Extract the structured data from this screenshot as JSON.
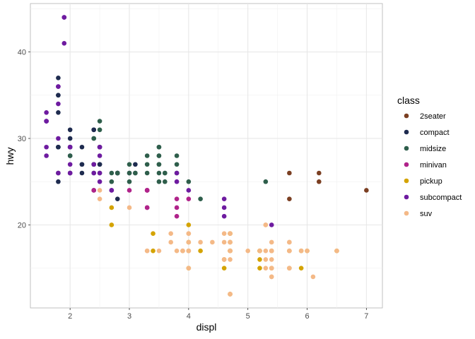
{
  "chart_data": {
    "type": "scatter",
    "title": "",
    "xlabel": "displ",
    "ylabel": "hwy",
    "xlim": [
      1.33,
      7.27
    ],
    "ylim": [
      10.4,
      45.6
    ],
    "x_ticks": [
      2,
      3,
      4,
      5,
      6,
      7
    ],
    "y_ticks": [
      20,
      30,
      40
    ],
    "grid": true,
    "legend": {
      "title": "class",
      "position": "right"
    },
    "series": [
      {
        "name": "2seater",
        "color": "#7b3f22",
        "points": [
          [
            5.7,
            26
          ],
          [
            5.7,
            23
          ],
          [
            6.2,
            26
          ],
          [
            6.2,
            25
          ],
          [
            7.0,
            24
          ]
        ]
      },
      {
        "name": "compact",
        "color": "#1e2b4f",
        "points": [
          [
            1.8,
            29
          ],
          [
            1.8,
            29
          ],
          [
            2.0,
            31
          ],
          [
            2.0,
            30
          ],
          [
            2.8,
            26
          ],
          [
            2.8,
            26
          ],
          [
            3.1,
            27
          ],
          [
            1.8,
            26
          ],
          [
            1.8,
            25
          ],
          [
            2.0,
            28
          ],
          [
            2.0,
            29
          ],
          [
            2.8,
            26
          ],
          [
            3.1,
            26
          ],
          [
            2.2,
            27
          ],
          [
            2.2,
            29
          ],
          [
            2.4,
            31
          ],
          [
            2.4,
            31
          ],
          [
            3.0,
            26
          ],
          [
            1.8,
            33
          ],
          [
            1.8,
            35
          ],
          [
            1.8,
            37
          ],
          [
            1.8,
            35
          ],
          [
            1.8,
            29
          ],
          [
            2.0,
            29
          ],
          [
            2.0,
            29
          ],
          [
            2.5,
            27
          ],
          [
            2.5,
            27
          ],
          [
            2.2,
            26
          ],
          [
            2.2,
            27
          ],
          [
            2.4,
            24
          ],
          [
            2.8,
            23
          ]
        ]
      },
      {
        "name": "midsize",
        "color": "#2e5e4b",
        "points": [
          [
            2.4,
            27
          ],
          [
            2.4,
            30
          ],
          [
            3.1,
            26
          ],
          [
            3.5,
            29
          ],
          [
            3.6,
            26
          ],
          [
            2.4,
            27
          ],
          [
            3.0,
            26
          ],
          [
            3.3,
            26
          ],
          [
            3.3,
            28
          ],
          [
            3.3,
            27
          ],
          [
            3.8,
            27
          ],
          [
            3.8,
            26
          ],
          [
            4.0,
            25
          ],
          [
            2.4,
            30
          ],
          [
            2.5,
            32
          ],
          [
            2.5,
            31
          ],
          [
            3.5,
            27
          ],
          [
            3.5,
            25
          ],
          [
            3.0,
            27
          ],
          [
            3.5,
            26
          ],
          [
            2.5,
            29
          ],
          [
            2.5,
            26
          ],
          [
            2.7,
            26
          ],
          [
            2.7,
            25
          ],
          [
            3.0,
            25
          ],
          [
            3.5,
            28
          ],
          [
            3.5,
            27
          ],
          [
            3.8,
            28
          ],
          [
            4.2,
            23
          ],
          [
            5.3,
            25
          ],
          [
            2.0,
            28
          ],
          [
            2.0,
            26
          ],
          [
            2.8,
            26
          ],
          [
            3.6,
            26
          ],
          [
            3.6,
            25
          ],
          [
            2.4,
            26
          ],
          [
            2.4,
            27
          ],
          [
            3.5,
            29
          ],
          [
            3.5,
            28
          ],
          [
            2.5,
            29
          ]
        ]
      },
      {
        "name": "minivan",
        "color": "#b0238a",
        "points": [
          [
            2.4,
            24
          ],
          [
            3.0,
            24
          ],
          [
            3.3,
            22
          ],
          [
            3.3,
            22
          ],
          [
            3.3,
            24
          ],
          [
            3.3,
            24
          ],
          [
            3.3,
            24
          ],
          [
            3.8,
            22
          ],
          [
            3.8,
            21
          ],
          [
            3.8,
            23
          ],
          [
            4.0,
            23
          ],
          [
            3.3,
            24
          ]
        ]
      },
      {
        "name": "pickup",
        "color": "#d4a300",
        "points": [
          [
            2.7,
            20
          ],
          [
            2.7,
            22
          ],
          [
            3.4,
            19
          ],
          [
            3.4,
            17
          ],
          [
            4.0,
            20
          ],
          [
            4.0,
            17
          ],
          [
            4.7,
            17
          ],
          [
            4.7,
            17
          ],
          [
            4.7,
            12
          ],
          [
            5.2,
            17
          ],
          [
            5.2,
            15
          ],
          [
            5.7,
            17
          ],
          [
            5.9,
            17
          ],
          [
            4.7,
            19
          ],
          [
            4.7,
            18
          ],
          [
            4.7,
            17
          ],
          [
            4.7,
            19
          ],
          [
            5.2,
            16
          ],
          [
            5.2,
            17
          ],
          [
            4.7,
            12
          ],
          [
            4.7,
            19
          ],
          [
            5.7,
            15
          ],
          [
            5.9,
            15
          ],
          [
            6.0,
            17
          ],
          [
            6.5,
            17
          ],
          [
            4.2,
            17
          ],
          [
            4.6,
            15
          ],
          [
            4.6,
            16
          ],
          [
            5.4,
            15
          ],
          [
            5.4,
            17
          ],
          [
            4.0,
            15
          ],
          [
            4.0,
            18
          ],
          [
            4.7,
            17
          ]
        ]
      },
      {
        "name": "subcompact",
        "color": "#6e1ba0",
        "points": [
          [
            1.6,
            33
          ],
          [
            1.6,
            32
          ],
          [
            1.6,
            32
          ],
          [
            1.6,
            29
          ],
          [
            1.6,
            32
          ],
          [
            1.8,
            34
          ],
          [
            1.8,
            36
          ],
          [
            1.8,
            36
          ],
          [
            2.0,
            29
          ],
          [
            2.4,
            26
          ],
          [
            2.4,
            27
          ],
          [
            2.5,
            26
          ],
          [
            2.5,
            25
          ],
          [
            3.8,
            26
          ],
          [
            3.8,
            25
          ],
          [
            4.0,
            24
          ],
          [
            4.6,
            23
          ],
          [
            4.6,
            22
          ],
          [
            5.4,
            20
          ],
          [
            1.9,
            44
          ],
          [
            1.9,
            44
          ],
          [
            1.9,
            41
          ],
          [
            2.0,
            29
          ],
          [
            2.0,
            26
          ],
          [
            2.5,
            29
          ],
          [
            2.5,
            29
          ],
          [
            2.5,
            28
          ],
          [
            2.7,
            24
          ],
          [
            2.7,
            24
          ],
          [
            1.8,
            30
          ],
          [
            2.0,
            27
          ],
          [
            2.0,
            26
          ],
          [
            1.8,
            26
          ],
          [
            4.6,
            21
          ],
          [
            1.6,
            28
          ]
        ]
      },
      {
        "name": "suv",
        "color": "#f4b987",
        "points": [
          [
            5.3,
            20
          ],
          [
            5.3,
            15
          ],
          [
            5.3,
            20
          ],
          [
            5.7,
            17
          ],
          [
            6.0,
            17
          ],
          [
            5.7,
            18
          ],
          [
            6.5,
            17
          ],
          [
            3.7,
            19
          ],
          [
            3.7,
            18
          ],
          [
            3.9,
            17
          ],
          [
            3.9,
            17
          ],
          [
            4.7,
            19
          ],
          [
            4.7,
            19
          ],
          [
            4.7,
            12
          ],
          [
            5.2,
            17
          ],
          [
            5.7,
            17
          ],
          [
            5.9,
            17
          ],
          [
            4.7,
            12
          ],
          [
            4.7,
            12
          ],
          [
            4.7,
            16
          ],
          [
            4.7,
            17
          ],
          [
            5.7,
            17
          ],
          [
            6.1,
            14
          ],
          [
            5.4,
            17
          ],
          [
            4.0,
            18
          ],
          [
            4.0,
            17
          ],
          [
            4.0,
            15
          ],
          [
            4.0,
            19
          ],
          [
            4.6,
            19
          ],
          [
            5.0,
            17
          ],
          [
            4.2,
            18
          ],
          [
            4.4,
            18
          ],
          [
            4.6,
            16
          ],
          [
            5.4,
            17
          ],
          [
            5.4,
            17
          ],
          [
            4.6,
            16
          ],
          [
            5.4,
            18
          ],
          [
            5.7,
            18
          ],
          [
            5.4,
            15
          ],
          [
            3.3,
            17
          ],
          [
            3.3,
            17
          ],
          [
            3.0,
            22
          ],
          [
            2.5,
            23
          ],
          [
            2.5,
            24
          ],
          [
            4.0,
            17
          ],
          [
            3.8,
            17
          ],
          [
            4.7,
            18
          ],
          [
            5.4,
            14
          ],
          [
            5.4,
            14
          ],
          [
            5.7,
            15
          ],
          [
            4.6,
            18
          ],
          [
            5.4,
            16
          ],
          [
            4.0,
            19
          ],
          [
            3.5,
            17
          ],
          [
            3.9,
            17
          ],
          [
            4.7,
            17
          ],
          [
            4.7,
            18
          ],
          [
            5.4,
            15
          ],
          [
            4.7,
            17
          ],
          [
            5.7,
            15
          ],
          [
            5.3,
            16
          ],
          [
            5.3,
            17
          ]
        ]
      }
    ]
  }
}
